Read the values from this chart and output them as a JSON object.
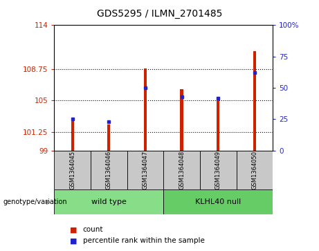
{
  "title": "GDS5295 / ILMN_2701485",
  "categories": [
    "GSM1364045",
    "GSM1364046",
    "GSM1364047",
    "GSM1364048",
    "GSM1364049",
    "GSM1364050"
  ],
  "bar_heights": [
    102.6,
    102.1,
    108.8,
    106.3,
    105.3,
    110.9
  ],
  "percentile_ranks": [
    25,
    23,
    50,
    43,
    42,
    62
  ],
  "y_min": 99,
  "y_max": 114,
  "y_ticks_left": [
    99,
    101.25,
    105,
    108.75,
    114
  ],
  "y_ticks_right": [
    0,
    25,
    50,
    75,
    100
  ],
  "bar_color": "#cc2200",
  "percentile_color": "#2222cc",
  "bar_width": 0.08,
  "group_defs": [
    {
      "start": 0,
      "end": 2,
      "label": "wild type",
      "color": "#88dd88"
    },
    {
      "start": 3,
      "end": 5,
      "label": "KLHL40 null",
      "color": "#66cc66"
    }
  ],
  "genotype_label": "genotype/variation",
  "legend_items": [
    {
      "label": "count",
      "color": "#cc2200"
    },
    {
      "label": "percentile rank within the sample",
      "color": "#2222cc"
    }
  ],
  "grid_ticks": [
    101.25,
    105,
    108.75
  ],
  "background_color": "#ffffff",
  "sample_area_bg": "#c8c8c8"
}
